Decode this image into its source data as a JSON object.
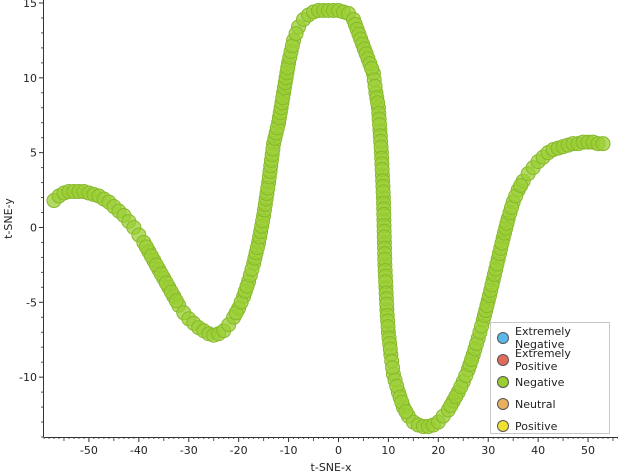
{
  "chart_data": {
    "type": "scatter",
    "title": "",
    "xlabel": "t-SNE-x",
    "ylabel": "t-SNE-y",
    "xlim": [
      -59,
      56
    ],
    "ylim": [
      -14,
      15.2
    ],
    "x_ticks": [
      -50,
      -40,
      -30,
      -20,
      -10,
      0,
      10,
      20,
      30,
      40,
      50
    ],
    "y_ticks": [
      -10,
      -5,
      0,
      5,
      10,
      15
    ],
    "legend_position": "bottom-right",
    "legend": [
      {
        "name": "Extremely Negative",
        "color": "#5bb8e8"
      },
      {
        "name": "Extremely Positive",
        "color": "#e06b5a"
      },
      {
        "name": "Negative",
        "color": "#9acd32"
      },
      {
        "name": "Neutral",
        "color": "#e8b060"
      },
      {
        "name": "Positive",
        "color": "#f0e030"
      }
    ],
    "series": [
      {
        "name": "Negative",
        "color": "#9acd32",
        "points": [
          [
            -57,
            1.8
          ],
          [
            -56,
            2.1
          ],
          [
            -55,
            2.3
          ],
          [
            -54,
            2.4
          ],
          [
            -53,
            2.4
          ],
          [
            -52,
            2.4
          ],
          [
            -51,
            2.4
          ],
          [
            -50,
            2.3
          ],
          [
            -49,
            2.2
          ],
          [
            -48,
            2.1
          ],
          [
            -47,
            1.9
          ],
          [
            -46,
            1.7
          ],
          [
            -45,
            1.4
          ],
          [
            -44,
            1.1
          ],
          [
            -43,
            0.8
          ],
          [
            -42,
            0.4
          ],
          [
            -41,
            0.0
          ],
          [
            -40,
            -0.5
          ],
          [
            -39,
            -1.0
          ],
          [
            -38,
            -1.6
          ],
          [
            -37,
            -2.2
          ],
          [
            -36,
            -2.8
          ],
          [
            -35,
            -3.4
          ],
          [
            -34,
            -4.0
          ],
          [
            -33,
            -4.6
          ],
          [
            -32,
            -5.2
          ],
          [
            -31,
            -5.7
          ],
          [
            -30,
            -6.1
          ],
          [
            -29,
            -6.4
          ],
          [
            -28,
            -6.7
          ],
          [
            -27,
            -6.9
          ],
          [
            -26,
            -7.1
          ],
          [
            -25,
            -7.2
          ],
          [
            -24,
            -7.1
          ],
          [
            -23,
            -6.9
          ],
          [
            -22,
            -6.5
          ],
          [
            -21,
            -6.0
          ],
          [
            -20,
            -5.4
          ],
          [
            -19,
            -4.6
          ],
          [
            -18,
            -3.6
          ],
          [
            -17,
            -2.4
          ],
          [
            -16,
            -1.0
          ],
          [
            -15,
            0.8
          ],
          [
            -14,
            3.0
          ],
          [
            -13,
            5.6
          ],
          [
            -12,
            7.0
          ],
          [
            -11,
            9.0
          ],
          [
            -10,
            11.0
          ],
          [
            -9,
            12.5
          ],
          [
            -8,
            13.4
          ],
          [
            -7,
            13.9
          ],
          [
            -6,
            14.2
          ],
          [
            -5,
            14.4
          ],
          [
            -4,
            14.5
          ],
          [
            -3,
            14.5
          ],
          [
            -2,
            14.5
          ],
          [
            -1,
            14.5
          ],
          [
            0,
            14.5
          ],
          [
            1,
            14.4
          ],
          [
            2,
            14.3
          ],
          [
            3,
            13.9
          ],
          [
            7,
            10.3
          ],
          [
            7.5,
            9.0
          ],
          [
            8,
            8.0
          ],
          [
            8.3,
            6.5
          ],
          [
            8.6,
            5.0
          ],
          [
            8.8,
            3.5
          ],
          [
            9,
            2.0
          ],
          [
            9.1,
            0.5
          ],
          [
            9.2,
            -1.0
          ],
          [
            9.3,
            -2.5
          ],
          [
            9.5,
            -4.0
          ],
          [
            9.7,
            -5.5
          ],
          [
            10,
            -7.0
          ],
          [
            10.5,
            -8.5
          ],
          [
            11,
            -9.8
          ],
          [
            12,
            -11.0
          ],
          [
            13,
            -12.0
          ],
          [
            14,
            -12.6
          ],
          [
            15,
            -13.0
          ],
          [
            16,
            -13.2
          ],
          [
            17,
            -13.3
          ],
          [
            18,
            -13.3
          ],
          [
            19,
            -13.2
          ],
          [
            20,
            -13.0
          ],
          [
            21,
            -12.6
          ],
          [
            22,
            -12.2
          ],
          [
            23,
            -11.6
          ],
          [
            24,
            -11.0
          ],
          [
            25,
            -10.3
          ],
          [
            26,
            -9.5
          ],
          [
            27,
            -8.5
          ],
          [
            28,
            -7.4
          ],
          [
            29,
            -6.2
          ],
          [
            30,
            -4.9
          ],
          [
            31,
            -3.5
          ],
          [
            32,
            -2.1
          ],
          [
            33,
            -0.7
          ],
          [
            34,
            0.6
          ],
          [
            35,
            1.7
          ],
          [
            36,
            2.5
          ],
          [
            37,
            3.1
          ],
          [
            38,
            3.6
          ],
          [
            39,
            4.0
          ],
          [
            40,
            4.4
          ],
          [
            41,
            4.7
          ],
          [
            42,
            5.0
          ],
          [
            43,
            5.2
          ],
          [
            44,
            5.3
          ],
          [
            45,
            5.4
          ],
          [
            46,
            5.5
          ],
          [
            47,
            5.6
          ],
          [
            48,
            5.6
          ],
          [
            49,
            5.7
          ],
          [
            50,
            5.7
          ],
          [
            51,
            5.7
          ],
          [
            52,
            5.6
          ],
          [
            53,
            5.6
          ]
        ]
      }
    ]
  }
}
